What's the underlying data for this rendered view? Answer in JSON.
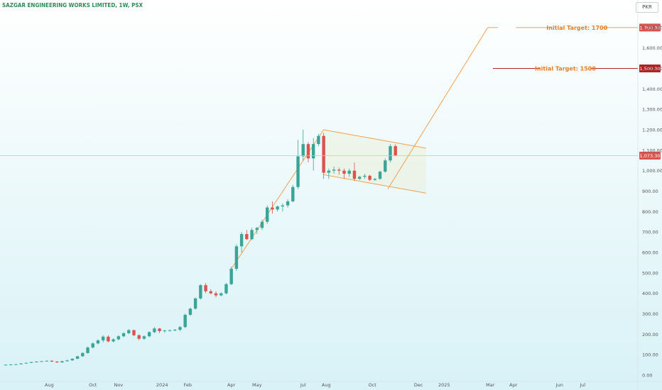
{
  "header": {
    "title": "SAZGAR ENGINEERING WORKS LIMITED, 1W, PSX",
    "currency": "PKR"
  },
  "colors": {
    "up": "#3aa597",
    "down": "#d9534f",
    "pattern": "#f0a050",
    "target_line": "#b22222",
    "target_text": "#e67e22",
    "price_line": "#f3b9a0"
  },
  "chart_data": {
    "type": "candlestick",
    "title": "SAZGAR ENGINEERING WORKS LIMITED, 1W, PSX",
    "y_axis": {
      "min": 0,
      "max": 1800,
      "ticks": [
        "0.00",
        "100.00",
        "200.00",
        "300.00",
        "400.00",
        "500.00",
        "600.00",
        "700.00",
        "800.00",
        "900.00",
        "1,000.00",
        "1,100.00",
        "1,200.00",
        "1,300.00",
        "1,400.00",
        "1,500.00",
        "1,600.00",
        "1,700.00"
      ],
      "tick_values": [
        0,
        100,
        200,
        300,
        400,
        500,
        600,
        700,
        800,
        900,
        1000,
        1100,
        1200,
        1300,
        1400,
        1500,
        1600,
        1700
      ]
    },
    "x_axis": {
      "labels": [
        {
          "label": "Aug",
          "week": 8.5
        },
        {
          "label": "Oct",
          "week": 17
        },
        {
          "label": "Nov",
          "week": 22
        },
        {
          "label": "2024",
          "week": 30.5
        },
        {
          "label": "Feb",
          "week": 35.5
        },
        {
          "label": "Apr",
          "week": 44
        },
        {
          "label": "May",
          "week": 49
        },
        {
          "label": "Jul",
          "week": 58
        },
        {
          "label": "Aug",
          "week": 62.5
        },
        {
          "label": "Oct",
          "week": 71.5
        },
        {
          "label": "Dec",
          "week": 80.5
        },
        {
          "label": "2025",
          "week": 85.5
        },
        {
          "label": "Mar",
          "week": 94.5
        },
        {
          "label": "Apr",
          "week": 99
        },
        {
          "label": "Jun",
          "week": 108
        },
        {
          "label": "Jul",
          "week": 112.5
        }
      ]
    },
    "candles": [
      [
        50,
        52,
        49,
        51
      ],
      [
        51,
        53,
        50,
        52
      ],
      [
        52,
        54,
        51,
        53
      ],
      [
        53,
        58,
        52,
        57
      ],
      [
        57,
        62,
        56,
        60
      ],
      [
        60,
        65,
        59,
        64
      ],
      [
        64,
        68,
        62,
        66
      ],
      [
        66,
        70,
        65,
        68
      ],
      [
        68,
        72,
        67,
        70
      ],
      [
        70,
        73,
        64,
        66
      ],
      [
        66,
        69,
        60,
        62
      ],
      [
        62,
        70,
        61,
        68
      ],
      [
        68,
        75,
        66,
        72
      ],
      [
        72,
        82,
        70,
        80
      ],
      [
        80,
        95,
        78,
        92
      ],
      [
        92,
        112,
        90,
        108
      ],
      [
        108,
        140,
        105,
        135
      ],
      [
        135,
        160,
        130,
        155
      ],
      [
        155,
        175,
        150,
        170
      ],
      [
        170,
        195,
        160,
        188
      ],
      [
        188,
        195,
        160,
        165
      ],
      [
        165,
        180,
        160,
        175
      ],
      [
        175,
        195,
        170,
        190
      ],
      [
        190,
        210,
        185,
        205
      ],
      [
        205,
        225,
        200,
        220
      ],
      [
        220,
        222,
        190,
        195
      ],
      [
        195,
        200,
        170,
        178
      ],
      [
        178,
        195,
        172,
        190
      ],
      [
        190,
        215,
        185,
        210
      ],
      [
        210,
        235,
        205,
        228
      ],
      [
        228,
        230,
        205,
        215
      ],
      [
        215,
        222,
        208,
        218
      ],
      [
        218,
        222,
        212,
        220
      ],
      [
        220,
        225,
        215,
        222
      ],
      [
        222,
        240,
        215,
        235
      ],
      [
        235,
        300,
        230,
        295
      ],
      [
        295,
        330,
        290,
        325
      ],
      [
        325,
        380,
        320,
        375
      ],
      [
        375,
        445,
        370,
        440
      ],
      [
        440,
        450,
        400,
        410
      ],
      [
        410,
        420,
        395,
        400
      ],
      [
        400,
        410,
        380,
        390
      ],
      [
        390,
        405,
        385,
        400
      ],
      [
        400,
        450,
        395,
        445
      ],
      [
        445,
        530,
        440,
        520
      ],
      [
        520,
        640,
        510,
        630
      ],
      [
        630,
        700,
        600,
        690
      ],
      [
        690,
        710,
        660,
        665
      ],
      [
        665,
        720,
        660,
        710
      ],
      [
        710,
        725,
        690,
        720
      ],
      [
        720,
        760,
        710,
        750
      ],
      [
        750,
        830,
        740,
        820
      ],
      [
        820,
        850,
        790,
        810
      ],
      [
        810,
        830,
        800,
        825
      ],
      [
        825,
        840,
        800,
        830
      ],
      [
        830,
        860,
        820,
        850
      ],
      [
        850,
        930,
        845,
        920
      ],
      [
        920,
        1150,
        910,
        1070
      ],
      [
        1070,
        1200,
        1050,
        1130
      ],
      [
        1130,
        1140,
        1040,
        1060
      ],
      [
        1060,
        1160,
        1000,
        1130
      ],
      [
        1130,
        1180,
        1120,
        1170
      ],
      [
        1170,
        1185,
        960,
        990
      ],
      [
        990,
        1010,
        960,
        1000
      ],
      [
        1000,
        1020,
        985,
        1005
      ],
      [
        1005,
        1015,
        980,
        1000
      ],
      [
        1000,
        1010,
        960,
        985
      ],
      [
        985,
        1010,
        970,
        1000
      ],
      [
        1000,
        1040,
        950,
        960
      ],
      [
        960,
        975,
        955,
        970
      ],
      [
        970,
        985,
        960,
        975
      ],
      [
        975,
        980,
        950,
        955
      ],
      [
        955,
        965,
        950,
        960
      ],
      [
        960,
        1000,
        955,
        995
      ],
      [
        995,
        1060,
        990,
        1050
      ],
      [
        1050,
        1130,
        1040,
        1120
      ],
      [
        1120,
        1130,
        1070,
        1074
      ]
    ],
    "current_price": {
      "label": "1,073.30",
      "value": 1073.3
    },
    "annotations": [
      {
        "text": "Initial Target: 1500",
        "value": 1500,
        "price_tag": "1,500.00"
      },
      {
        "text": "Initial Target: 1700",
        "value": 1700,
        "price_tag": "1,700.00"
      }
    ],
    "pattern_lines": [
      {
        "name": "flagpole-trendline",
        "from": [
          44,
          520
        ],
        "to": [
          62,
          1200
        ]
      },
      {
        "name": "flag-upper-line",
        "from": [
          62,
          1200
        ],
        "to": [
          82,
          1110
        ]
      },
      {
        "name": "flag-lower-line",
        "from": [
          62,
          980
        ],
        "to": [
          82,
          890
        ]
      },
      {
        "name": "breakout-projection",
        "from": [
          74.5,
          910
        ],
        "to": [
          94,
          1700
        ]
      },
      {
        "name": "target-1700-leader",
        "from": [
          94,
          1700
        ],
        "to": [
          96,
          1700
        ]
      }
    ],
    "grid": false,
    "legend": "none"
  }
}
